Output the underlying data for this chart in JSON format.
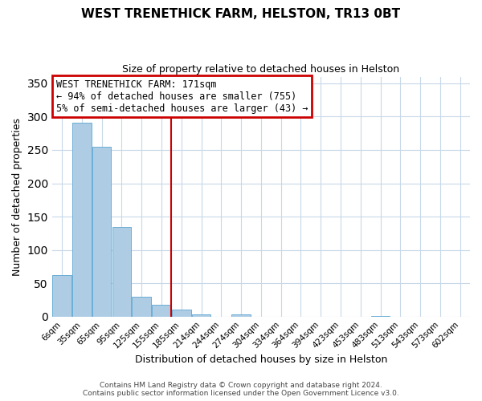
{
  "title": "WEST TRENETHICK FARM, HELSTON, TR13 0BT",
  "subtitle": "Size of property relative to detached houses in Helston",
  "xlabel": "Distribution of detached houses by size in Helston",
  "ylabel": "Number of detached properties",
  "bar_labels": [
    "6sqm",
    "35sqm",
    "65sqm",
    "95sqm",
    "125sqm",
    "155sqm",
    "185sqm",
    "214sqm",
    "244sqm",
    "274sqm",
    "304sqm",
    "334sqm",
    "364sqm",
    "394sqm",
    "423sqm",
    "453sqm",
    "483sqm",
    "513sqm",
    "543sqm",
    "573sqm",
    "602sqm"
  ],
  "bar_values": [
    62,
    291,
    255,
    134,
    30,
    18,
    11,
    3,
    0,
    3,
    0,
    0,
    0,
    0,
    0,
    0,
    1,
    0,
    0,
    0,
    0
  ],
  "bar_color": "#aecce4",
  "bar_edgecolor": "#6baed6",
  "vline_x_index": 5.5,
  "vline_color": "#cc0000",
  "ylim": [
    0,
    360
  ],
  "yticks": [
    0,
    50,
    100,
    150,
    200,
    250,
    300,
    350
  ],
  "annotation_title": "WEST TRENETHICK FARM: 171sqm",
  "annotation_line1": "← 94% of detached houses are smaller (755)",
  "annotation_line2": "5% of semi-detached houses are larger (43) →",
  "annotation_box_color": "#cc0000",
  "footer1": "Contains HM Land Registry data © Crown copyright and database right 2024.",
  "footer2": "Contains public sector information licensed under the Open Government Licence v3.0.",
  "background_color": "#ffffff",
  "grid_color": "#c8d8e8",
  "title_fontsize": 11,
  "subtitle_fontsize": 9,
  "ylabel_fontsize": 9,
  "xlabel_fontsize": 9,
  "tick_fontsize": 7.5,
  "annot_fontsize": 8.5,
  "footer_fontsize": 6.5
}
